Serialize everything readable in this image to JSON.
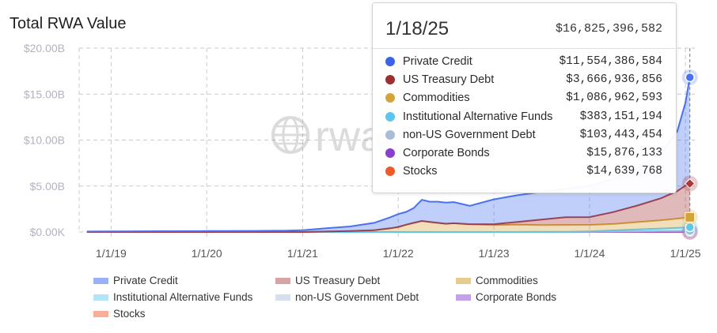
{
  "title": "Total RWA Value",
  "watermark": "rwa",
  "chart_data": {
    "type": "area",
    "stacked": true,
    "y_ticks": [
      "$0.00K",
      "$5.00B",
      "$10.00B",
      "$15.00B",
      "$20.00B"
    ],
    "ylim": [
      0,
      20000000000
    ],
    "x_ticks": [
      "1/1/19",
      "1/1/20",
      "1/1/21",
      "1/1/22",
      "1/1/23",
      "1/1/24",
      "1/1/25"
    ],
    "x_dates": [
      "2018-10-01",
      "2019-01-01",
      "2019-07-01",
      "2020-01-01",
      "2020-07-01",
      "2020-11-01",
      "2021-01-01",
      "2021-04-01",
      "2021-07-01",
      "2021-10-01",
      "2021-12-01",
      "2022-01-01",
      "2022-02-01",
      "2022-03-01",
      "2022-04-01",
      "2022-05-01",
      "2022-06-01",
      "2022-07-01",
      "2022-08-01",
      "2022-09-01",
      "2022-10-01",
      "2023-01-01",
      "2023-04-01",
      "2023-07-01",
      "2023-10-01",
      "2024-01-01",
      "2024-04-01",
      "2024-07-01",
      "2024-10-01",
      "2024-12-01",
      "2025-01-01",
      "2025-01-18"
    ],
    "series": [
      {
        "name": "Stocks",
        "color": "#f05a28",
        "values": [
          0,
          0,
          0,
          0,
          0,
          0,
          0,
          0,
          0,
          0,
          0,
          0,
          0,
          0,
          0,
          0,
          0,
          0,
          0,
          0,
          0,
          0,
          0,
          0,
          0,
          0,
          0.005,
          0.008,
          0.01,
          0.012,
          0.014,
          0.0146
        ]
      },
      {
        "name": "Corporate Bonds",
        "color": "#8a3fd1",
        "values": [
          0,
          0,
          0,
          0,
          0,
          0,
          0,
          0,
          0,
          0,
          0,
          0,
          0,
          0,
          0,
          0,
          0,
          0,
          0,
          0,
          0,
          0,
          0,
          0,
          0,
          0,
          0.005,
          0.008,
          0.01,
          0.012,
          0.014,
          0.0159
        ]
      },
      {
        "name": "non-US Government Debt",
        "color": "#a9bcd8",
        "values": [
          0,
          0,
          0,
          0,
          0,
          0,
          0,
          0,
          0,
          0,
          0,
          0,
          0,
          0,
          0,
          0,
          0,
          0,
          0,
          0,
          0,
          0,
          0,
          0.005,
          0.01,
          0.02,
          0.04,
          0.06,
          0.08,
          0.09,
          0.1,
          0.1034
        ]
      },
      {
        "name": "Institutional Alternative Funds",
        "color": "#5bc8ee",
        "values": [
          0,
          0,
          0,
          0,
          0,
          0,
          0,
          0,
          0,
          0,
          0,
          0,
          0,
          0,
          0,
          0,
          0,
          0,
          0,
          0,
          0,
          0,
          0,
          0,
          0,
          0.05,
          0.12,
          0.2,
          0.28,
          0.34,
          0.37,
          0.3832
        ]
      },
      {
        "name": "Commodities",
        "color": "#d4a43a",
        "values": [
          0,
          0,
          0,
          0,
          0,
          0,
          0,
          0.05,
          0.1,
          0.2,
          0.4,
          0.55,
          0.8,
          1.0,
          1.2,
          1.1,
          1.0,
          0.9,
          0.95,
          0.9,
          0.85,
          0.75,
          0.8,
          0.75,
          0.75,
          0.7,
          0.7,
          0.8,
          0.9,
          1.0,
          1.05,
          1.087
        ]
      },
      {
        "name": "US Treasury Debt",
        "color": "#a7393a",
        "values": [
          0,
          0,
          0,
          0,
          0,
          0,
          0,
          0,
          0,
          0,
          0,
          0,
          0,
          0,
          0,
          0,
          0,
          0,
          0,
          0,
          0,
          0.1,
          0.3,
          0.6,
          0.85,
          0.85,
          1.3,
          1.8,
          2.4,
          3.0,
          3.5,
          3.667
        ]
      },
      {
        "name": "Private Credit",
        "color": "#4a72f0",
        "values": [
          0.05,
          0.07,
          0.09,
          0.1,
          0.12,
          0.15,
          0.2,
          0.35,
          0.5,
          0.8,
          1.2,
          1.4,
          1.4,
          1.6,
          2.3,
          2.2,
          2.3,
          2.3,
          2.3,
          2.15,
          2.0,
          2.7,
          2.9,
          3.0,
          3.1,
          3.4,
          3.6,
          4.0,
          5.0,
          6.5,
          9.0,
          11.554
        ]
      }
    ]
  },
  "tooltip": {
    "date": "1/18/25",
    "total": "$16,825,396,582",
    "rows": [
      {
        "name": "Private Credit",
        "value": "$11,554,386,584",
        "color": "#3b63e8"
      },
      {
        "name": "US Treasury Debt",
        "value": "$3,666,936,856",
        "color": "#9b3030"
      },
      {
        "name": "Commodities",
        "value": "$1,086,962,593",
        "color": "#d3a33c"
      },
      {
        "name": "Institutional Alternative Funds",
        "value": "$383,151,194",
        "color": "#5cc6ec"
      },
      {
        "name": "non-US Government Debt",
        "value": "$103,443,454",
        "color": "#a9bcd8"
      },
      {
        "name": "Corporate Bonds",
        "value": "$15,876,133",
        "color": "#8a3fd1"
      },
      {
        "name": "Stocks",
        "value": "$14,639,768",
        "color": "#f05a28"
      }
    ]
  },
  "legend": [
    {
      "label": "Private Credit",
      "color": "#4a72f0"
    },
    {
      "label": "US Treasury Debt",
      "color": "#b55a5a"
    },
    {
      "label": "Commodities",
      "color": "#d4a43a"
    },
    {
      "label": "Institutional Alternative Funds",
      "color": "#74d0f2"
    },
    {
      "label": "non-US Government Debt",
      "color": "#b6c7de"
    },
    {
      "label": "Corporate Bonds",
      "color": "#9155d6"
    },
    {
      "label": "Stocks",
      "color": "#f26b42"
    }
  ]
}
